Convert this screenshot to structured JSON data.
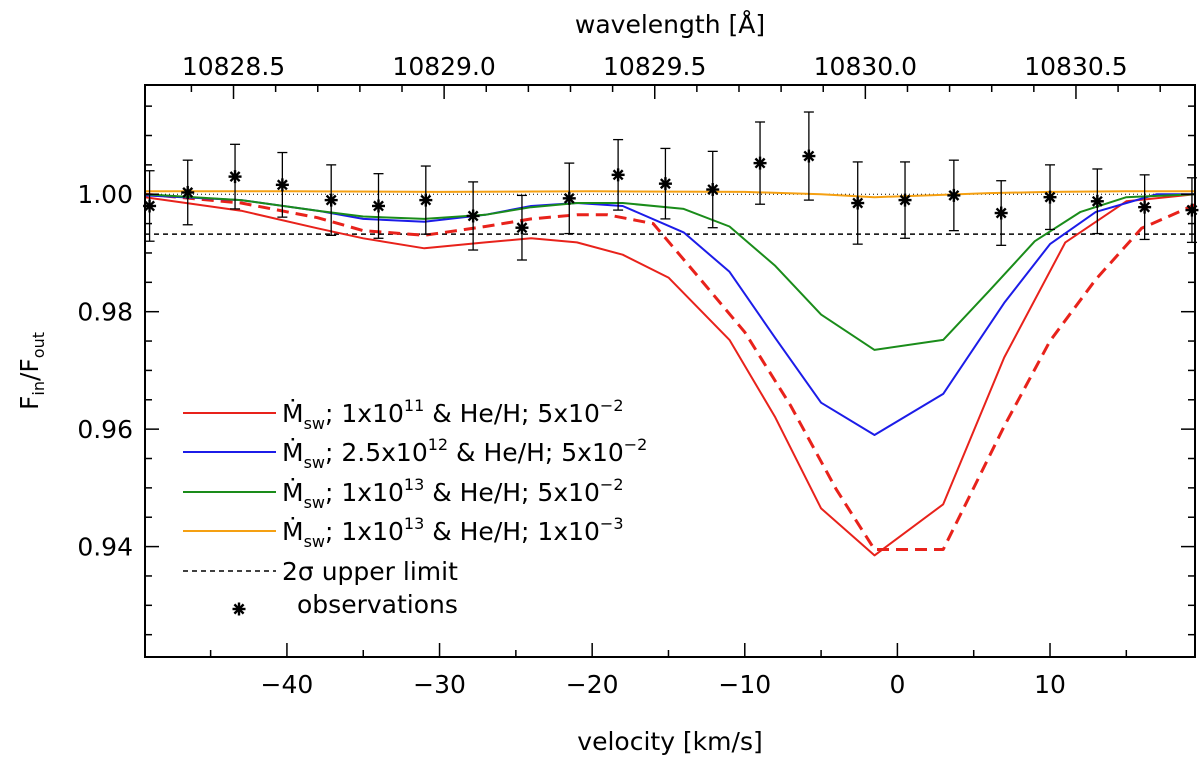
{
  "chart_data": {
    "type": "line",
    "xlabel": "velocity [km/s]",
    "ylabel": "F",
    "ylabel_sub1": "in",
    "ylabel_slash": "/F",
    "ylabel_sub2": "out",
    "top_xlabel": "wavelength [Å]",
    "xlim": [
      -49.3,
      19.5
    ],
    "ylim": [
      0.9212,
      1.0186
    ],
    "x_ticks": [
      -40,
      -30,
      -20,
      -10,
      0,
      10
    ],
    "x_tick_labels": [
      "−40",
      "−30",
      "−20",
      "−10",
      "0",
      "10"
    ],
    "y_ticks": [
      0.94,
      0.96,
      0.98,
      1.0
    ],
    "y_tick_labels": [
      "0.94",
      "0.96",
      "0.98",
      "1.00"
    ],
    "top_ticks_velocity": [
      -43.5,
      -29.7,
      -15.9,
      -2.1,
      11.7
    ],
    "top_tick_labels": [
      "10828.5",
      "10829.0",
      "10829.5",
      "10830.0",
      "10830.5"
    ],
    "upper_limit_2sigma": 0.9932,
    "series": [
      {
        "name": "red",
        "color": "#e8221b",
        "style": "solid",
        "x": [
          -49.3,
          -43,
          -38,
          -35,
          -31,
          -27,
          -24,
          -21,
          -18,
          -15,
          -11,
          -8,
          -5,
          -1.5,
          3,
          7,
          11,
          15,
          19.5
        ],
        "y": [
          0.9995,
          0.9972,
          0.9942,
          0.9925,
          0.9908,
          0.9918,
          0.9925,
          0.9918,
          0.9897,
          0.9858,
          0.9752,
          0.962,
          0.9465,
          0.9385,
          0.9472,
          0.9722,
          0.9918,
          0.9988,
          1.0
        ]
      },
      {
        "name": "red-dashed",
        "color": "#e8221b",
        "style": "dashed",
        "x": [
          -49.3,
          -43,
          -38,
          -35,
          -31,
          -27,
          -24,
          -21,
          -19,
          -16,
          -13,
          -10,
          -7,
          -4,
          -1.5,
          3,
          7,
          10,
          13,
          16,
          19.5
        ],
        "y": [
          1.0,
          0.9985,
          0.996,
          0.9938,
          0.993,
          0.9945,
          0.9958,
          0.9965,
          0.9965,
          0.995,
          0.9858,
          0.9765,
          0.964,
          0.9497,
          0.9395,
          0.9395,
          0.9605,
          0.975,
          0.9855,
          0.9942,
          0.9982
        ]
      },
      {
        "name": "blue",
        "color": "#1c1ce8",
        "style": "solid",
        "x": [
          -49.3,
          -43,
          -38,
          -35,
          -31,
          -27,
          -24,
          -21,
          -18,
          -14,
          -11,
          -8,
          -5,
          -1.5,
          3,
          7,
          10,
          13,
          17,
          19.5
        ],
        "y": [
          0.9998,
          0.999,
          0.9972,
          0.9958,
          0.9953,
          0.9965,
          0.998,
          0.9985,
          0.998,
          0.9935,
          0.9868,
          0.9755,
          0.9645,
          0.959,
          0.966,
          0.9815,
          0.9915,
          0.997,
          1.0,
          1.0
        ]
      },
      {
        "name": "green",
        "color": "#1a8c1a",
        "style": "solid",
        "x": [
          -49.3,
          -43,
          -38,
          -35,
          -31,
          -27,
          -24,
          -21,
          -18,
          -14,
          -11,
          -8,
          -5,
          -1.5,
          3,
          6,
          9,
          12,
          15,
          19.5
        ],
        "y": [
          1.0,
          0.999,
          0.9972,
          0.9962,
          0.9958,
          0.9965,
          0.9978,
          0.9985,
          0.9985,
          0.9975,
          0.9945,
          0.9878,
          0.9795,
          0.9735,
          0.9752,
          0.9835,
          0.992,
          0.997,
          0.9995,
          1.0
        ]
      },
      {
        "name": "orange",
        "color": "#f5a012",
        "style": "solid",
        "x": [
          -49.3,
          -40,
          -30,
          -20,
          -10,
          -5,
          -1.5,
          2,
          6,
          10,
          15,
          19.5
        ],
        "y": [
          1.0005,
          1.0005,
          1.0004,
          1.0005,
          1.0004,
          1.0,
          0.9995,
          0.9998,
          1.0002,
          1.0004,
          1.0005,
          1.0005
        ]
      }
    ],
    "observations": {
      "x": [
        -49.0,
        -46.5,
        -43.4,
        -40.3,
        -37.1,
        -34.0,
        -30.9,
        -27.8,
        -24.6,
        -21.5,
        -18.3,
        -15.2,
        -12.1,
        -9.0,
        -5.8,
        -2.6,
        0.5,
        3.7,
        6.8,
        10.0,
        13.1,
        16.2,
        19.3
      ],
      "y": [
        0.998,
        1.0003,
        1.003,
        1.0016,
        0.999,
        0.998,
        0.999,
        0.9963,
        0.9943,
        0.9993,
        1.0033,
        1.0018,
        1.0008,
        1.0053,
        1.0065,
        0.9985,
        0.999,
        0.9998,
        0.9968,
        0.9995,
        0.9988,
        0.9978,
        0.9973
      ],
      "err": [
        0.006,
        0.0055,
        0.0055,
        0.0055,
        0.006,
        0.0055,
        0.0058,
        0.0058,
        0.0055,
        0.006,
        0.006,
        0.006,
        0.0065,
        0.007,
        0.0075,
        0.007,
        0.0065,
        0.006,
        0.0055,
        0.0055,
        0.0055,
        0.0055,
        0.0055
      ]
    },
    "legend": {
      "position": "lower-left",
      "entries": [
        {
          "color": "#e8221b",
          "style": "solid",
          "label": "Ṁ",
          "sub": "sw",
          "text1": "; 1x10",
          "sup1": "11",
          "text2": " & He/H; 5x10",
          "sup2": "−2"
        },
        {
          "color": "#1c1ce8",
          "style": "solid",
          "label": "Ṁ",
          "sub": "sw",
          "text1": "; 2.5x10",
          "sup1": "12",
          "text2": " & He/H; 5x10",
          "sup2": "−2"
        },
        {
          "color": "#1a8c1a",
          "style": "solid",
          "label": "Ṁ",
          "sub": "sw",
          "text1": "; 1x10",
          "sup1": "13",
          "text2": " & He/H; 5x10",
          "sup2": "−2"
        },
        {
          "color": "#f5a012",
          "style": "solid",
          "label": "Ṁ",
          "sub": "sw",
          "text1": "; 1x10",
          "sup1": "13",
          "text2": " & He/H; 1x10",
          "sup2": "−3"
        }
      ],
      "upper_limit_label": "2σ upper limit",
      "observations_label": "observations"
    }
  }
}
